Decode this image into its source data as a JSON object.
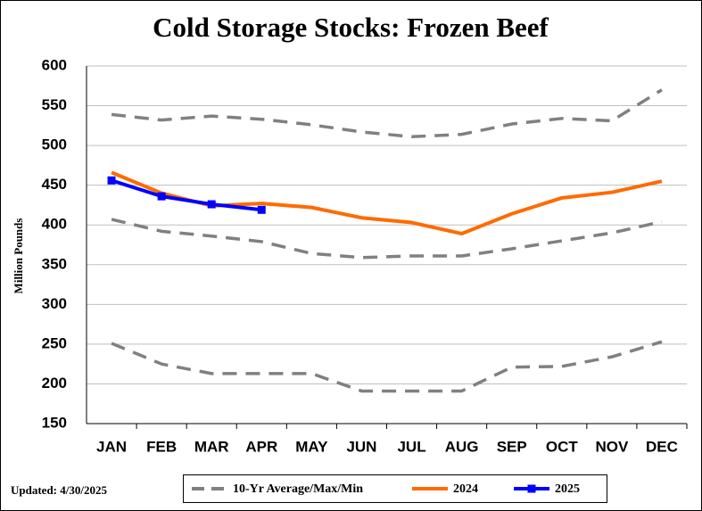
{
  "chart_data": {
    "type": "line",
    "title": "Cold Storage Stocks: Frozen Beef",
    "y_label": "Million Pounds",
    "annotation": "Updated: 4/30/2025",
    "categories": [
      "JAN",
      "FEB",
      "MAR",
      "APR",
      "MAY",
      "JUN",
      "JUL",
      "AUG",
      "SEP",
      "OCT",
      "NOV",
      "DEC"
    ],
    "ylim": [
      150,
      600
    ],
    "yticks": [
      150,
      200,
      250,
      300,
      350,
      400,
      450,
      500,
      550,
      600
    ],
    "grid": true,
    "legend": "bottom",
    "series": [
      {
        "name": "10-Yr Average/Max/Min",
        "color": "#808080",
        "dash": true,
        "values": [
          407,
          392,
          386,
          379,
          364,
          359,
          361,
          361,
          370,
          380,
          390,
          404
        ]
      },
      {
        "color": "#808080",
        "dash": true,
        "values": [
          539,
          532,
          537,
          533,
          526,
          517,
          511,
          514,
          527,
          534,
          531,
          570
        ]
      },
      {
        "color": "#808080",
        "dash": true,
        "values": [
          251,
          225,
          213,
          213,
          213,
          191,
          191,
          191,
          221,
          222,
          234,
          253
        ]
      },
      {
        "name": "2024",
        "color": "#ff6a00",
        "values": [
          466,
          440,
          424,
          427,
          422,
          409,
          403,
          389,
          414,
          434,
          441,
          455
        ]
      },
      {
        "name": "2025",
        "color": "#0000ff",
        "marker": "square",
        "values": [
          456,
          436,
          426,
          419,
          null,
          null,
          null,
          null,
          null,
          null,
          null,
          null
        ]
      }
    ]
  }
}
